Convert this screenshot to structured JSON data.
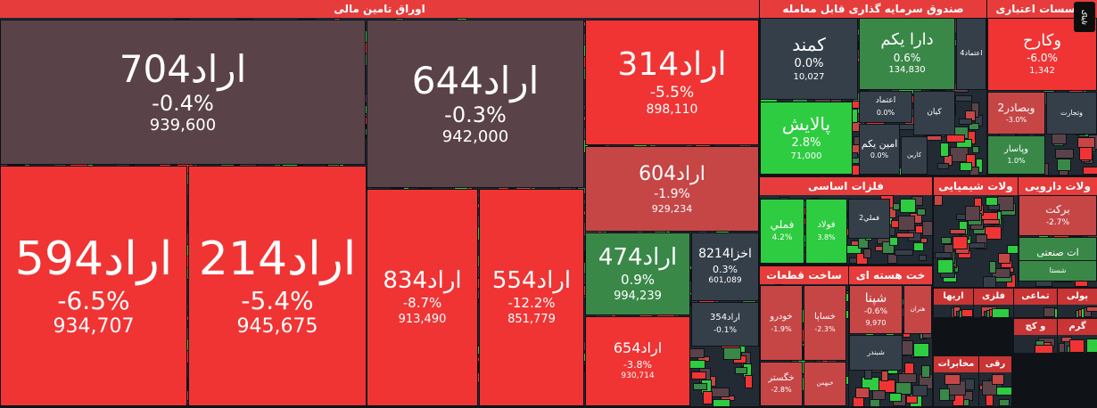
{
  "chart_data": {
    "type": "treemap",
    "metric_note": "",
    "colors": {
      "down_strong": "#f03434",
      "down_mid": "#c64646",
      "flat": "#5a4249",
      "up_mid": "#3a8848",
      "up_strong": "#2ecc40",
      "neutral": "#353f49"
    },
    "sectors": [
      {
        "title": "اوراق تامین مالی",
        "items": [
          {
            "name": "اراد704",
            "change": "-0.4%",
            "value": "939,600"
          },
          {
            "name": "اراد644",
            "change": "-0.3%",
            "value": "942,000"
          },
          {
            "name": "اراد314",
            "change": "-5.5%",
            "value": "898,110"
          },
          {
            "name": "اراد604",
            "change": "-1.9%",
            "value": "929,234"
          },
          {
            "name": "اراد594",
            "change": "-6.5%",
            "value": "934,707"
          },
          {
            "name": "اراد214",
            "change": "-5.4%",
            "value": "945,675"
          },
          {
            "name": "اراد834",
            "change": "-8.7%",
            "value": "913,490"
          },
          {
            "name": "اراد554",
            "change": "-12.2%",
            "value": "851,779"
          },
          {
            "name": "اراد474",
            "change": "0.9%",
            "value": "994,239"
          },
          {
            "name": "اخزا8214",
            "change": "0.3%",
            "value": "601,089"
          },
          {
            "name": "اراد354",
            "change": "-0.1%",
            "value": ""
          },
          {
            "name": "اراد654",
            "change": "-3.8%",
            "value": "930,714"
          }
        ]
      },
      {
        "title": "صندوق سرمایه گذاری قابل معامله",
        "items": [
          {
            "name": "کمند",
            "change": "0.0%",
            "value": "10,027"
          },
          {
            "name": "دارا یکم",
            "change": "0.6%",
            "value": "134,830"
          },
          {
            "name": "اعتماد4",
            "change": "",
            "value": ""
          },
          {
            "name": "پالایش",
            "change": "2.8%",
            "value": "71,000"
          },
          {
            "name": "اعتماد",
            "change": "0.0%",
            "value": ""
          },
          {
            "name": "کیان",
            "change": "",
            "value": ""
          },
          {
            "name": "امین یکم",
            "change": "0.0%",
            "value": ""
          },
          {
            "name": "کارین",
            "change": "",
            "value": ""
          }
        ]
      },
      {
        "title": "موسسات اعتباری",
        "items": [
          {
            "name": "وکارح",
            "change": "-6.0%",
            "value": "1,342"
          },
          {
            "name": "وبصادر2",
            "change": "-3.0%",
            "value": ""
          },
          {
            "name": "وتجارت",
            "change": "",
            "value": ""
          },
          {
            "name": "وپاسار",
            "change": "1.0%",
            "value": ""
          }
        ]
      },
      {
        "title": "فلزات اساسی",
        "items": [
          {
            "name": "فملي",
            "change": "4.2%",
            "value": ""
          },
          {
            "name": "فولاد",
            "change": "3.8%",
            "value": ""
          },
          {
            "name": "فملي2",
            "change": "",
            "value": ""
          }
        ]
      },
      {
        "title": "ولات شیمیایی",
        "items": []
      },
      {
        "title": "ولات دارویی",
        "items": [
          {
            "name": "برکت",
            "change": "-2.7%",
            "value": ""
          },
          {
            "name": "ات صنعتی",
            "change": "",
            "value": ""
          },
          {
            "name": "شستا",
            "change": "",
            "value": ""
          }
        ]
      },
      {
        "title": "ساخت قطعات",
        "items": [
          {
            "name": "خودرو",
            "change": "-1.9%",
            "value": ""
          },
          {
            "name": "خساپا",
            "change": "-2.3%",
            "value": ""
          },
          {
            "name": "خگستر",
            "change": "-2.8%",
            "value": ""
          },
          {
            "name": "خبهمن",
            "change": "",
            "value": ""
          }
        ]
      },
      {
        "title": "خت هسته ای",
        "items": [
          {
            "name": "شپنا",
            "change": "-0.6%",
            "value": "9,970"
          },
          {
            "name": "هنران",
            "change": "",
            "value": ""
          },
          {
            "name": "شبندر",
            "change": "",
            "value": ""
          }
        ]
      },
      {
        "title": "اریها",
        "items": []
      },
      {
        "title": "فلزی",
        "items": []
      },
      {
        "title": "تماعی",
        "items": []
      },
      {
        "title": "پولی",
        "items": []
      },
      {
        "title": "و کچ",
        "items": []
      },
      {
        "title": "گرم",
        "items": []
      },
      {
        "title": "مخابرات",
        "items": []
      },
      {
        "title": "رقی",
        "items": []
      }
    ]
  },
  "logo_text": "تابناک"
}
